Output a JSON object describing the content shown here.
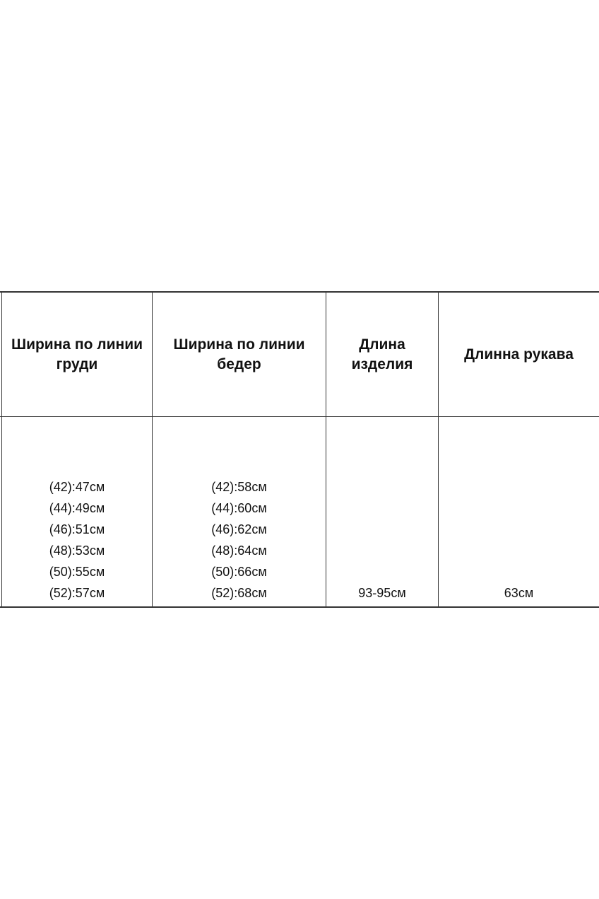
{
  "table": {
    "headers": [
      [
        "Ширина по линии",
        "груди"
      ],
      [
        "Ширина по линии",
        "бедер"
      ],
      [
        "Длина",
        "изделия"
      ],
      [
        "Длинна рукава"
      ]
    ],
    "chest": [
      "(42):47см",
      "(44):49см",
      "(46):51см",
      "(48):53см",
      "(50):55см",
      "(52):57см"
    ],
    "hips": [
      "(42):58см",
      "(44):60см",
      "(46):62см",
      "(48):64см",
      "(50):66см",
      "(52):68см"
    ],
    "length": "93-95см",
    "sleeve": "63см"
  }
}
